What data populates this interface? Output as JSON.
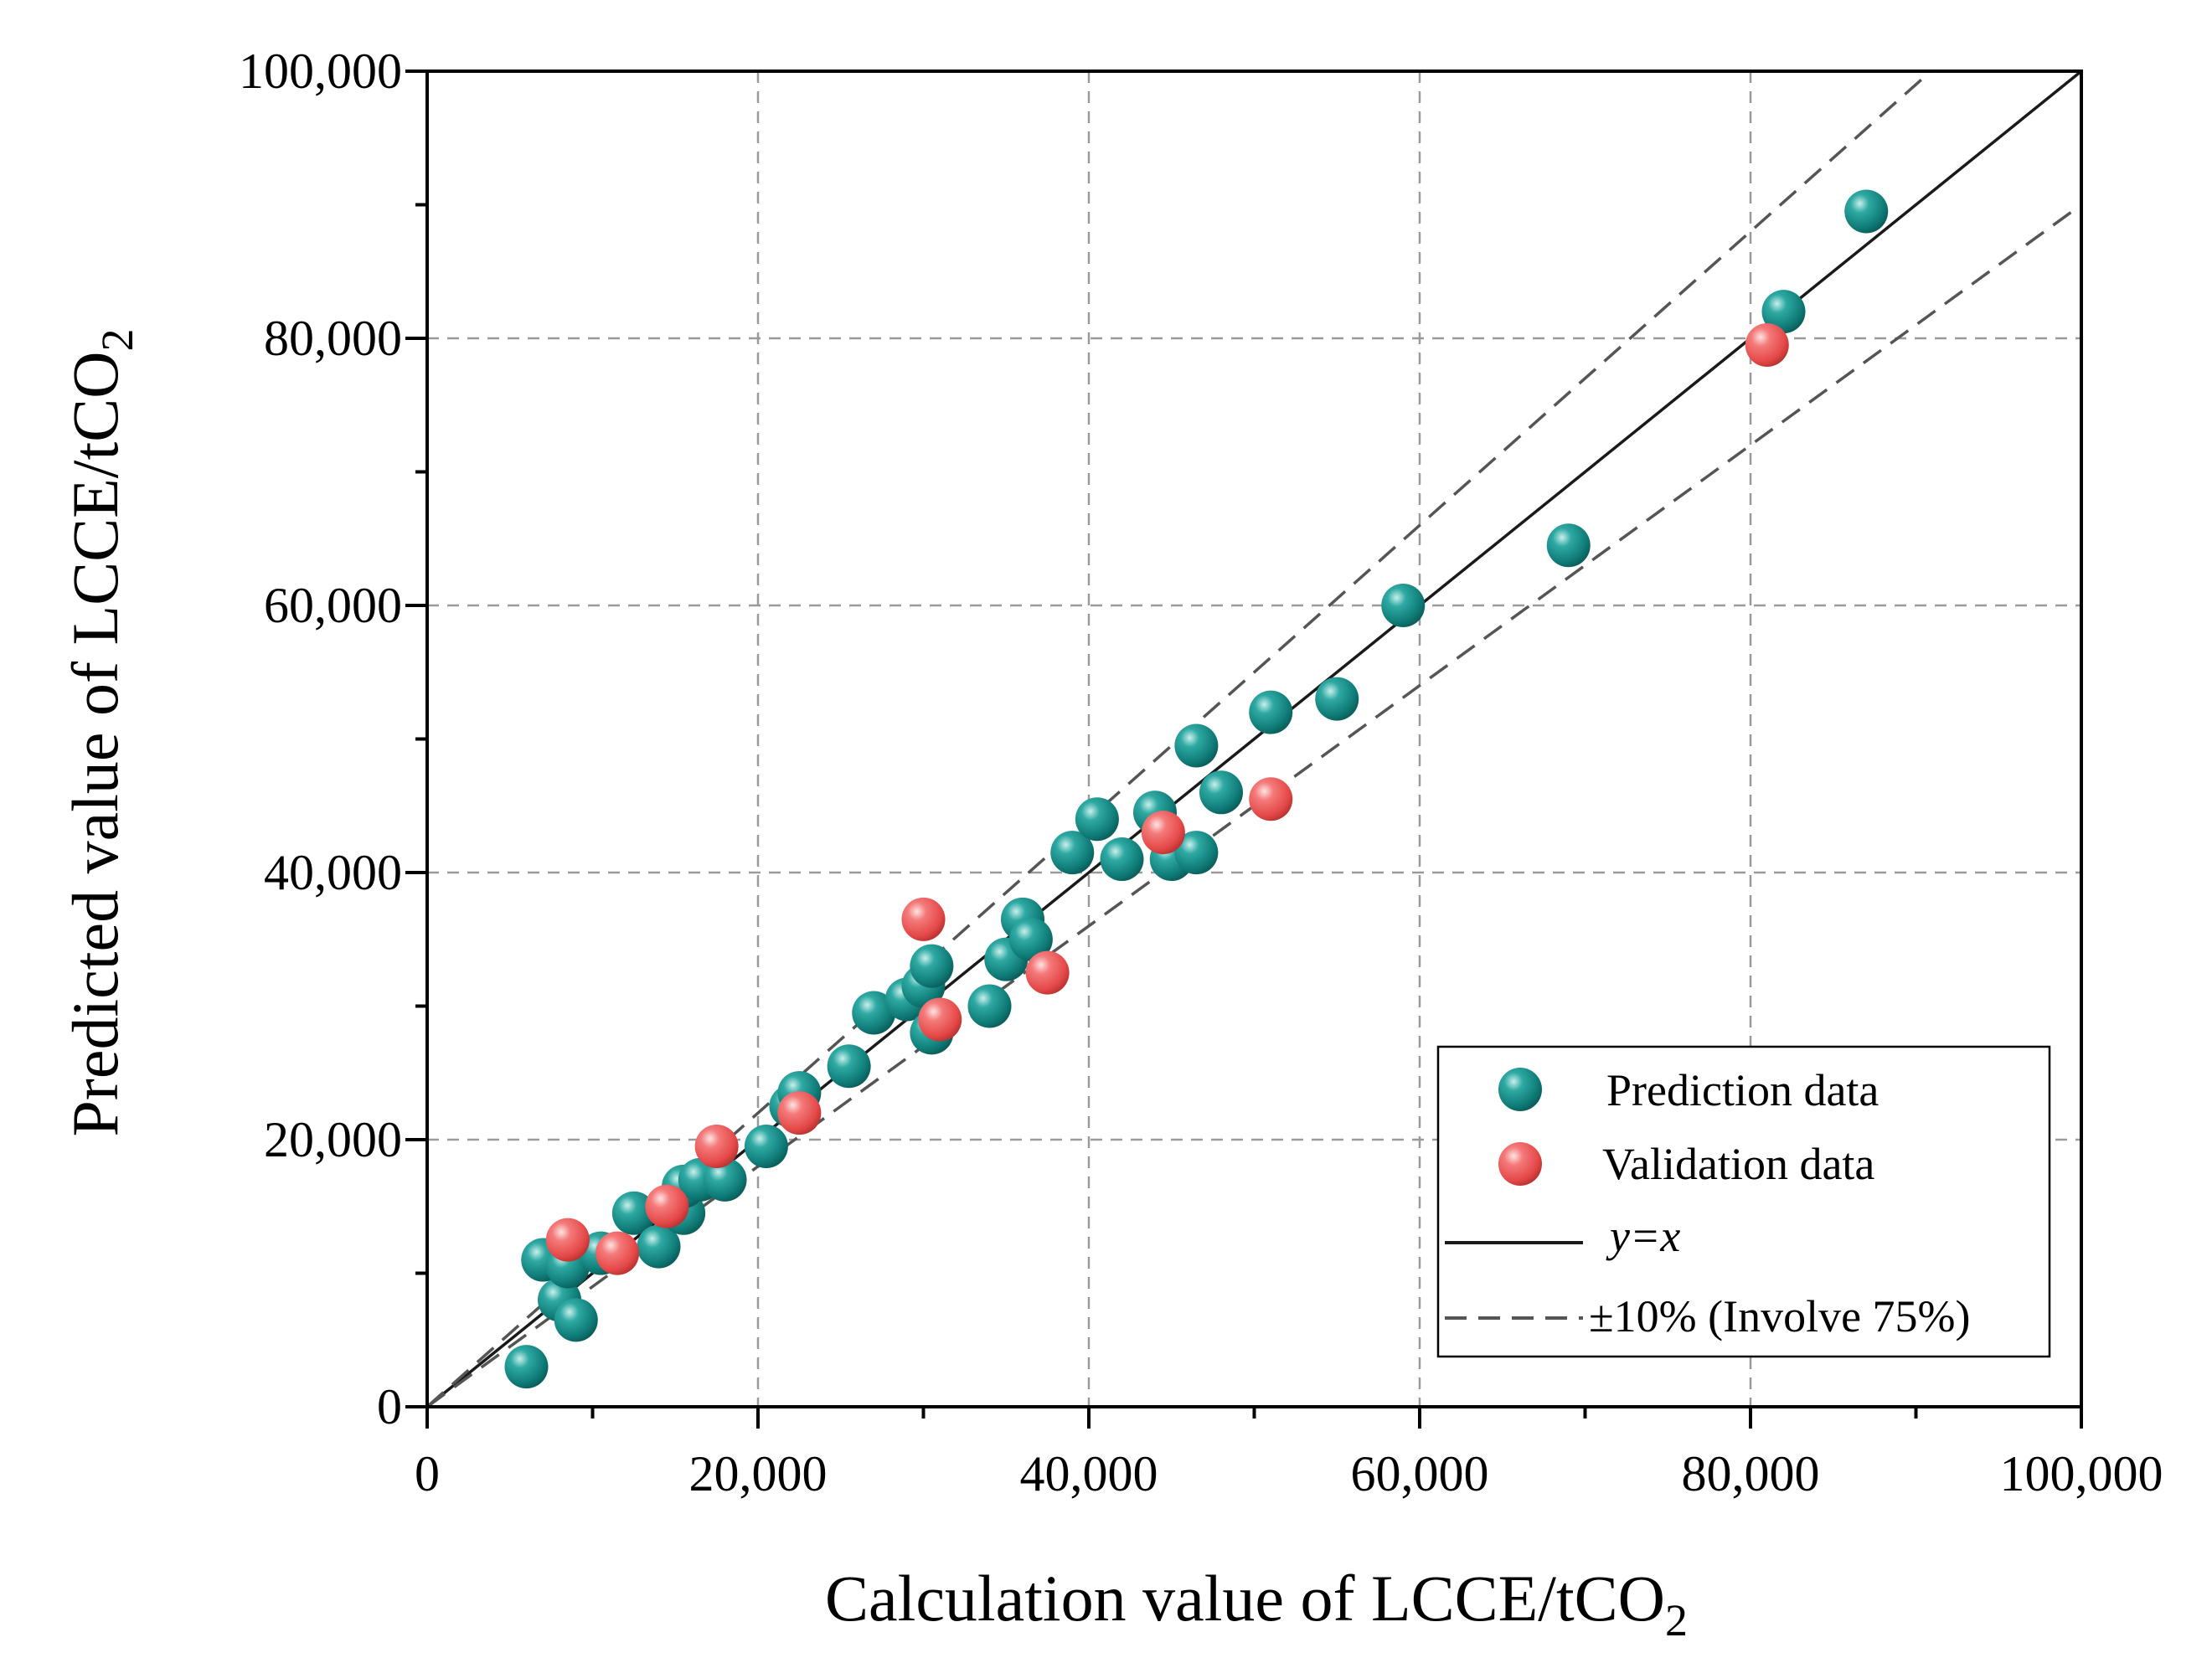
{
  "chart_data": {
    "type": "scatter",
    "title": "",
    "xlabel": {
      "main": "Calculation value of LCCE/tCO",
      "subscript": "2"
    },
    "ylabel": {
      "main": "Predicted value of LCCE/tCO",
      "subscript": "2"
    },
    "xlim": [
      0,
      100000
    ],
    "ylim": [
      0,
      100000
    ],
    "x_ticks": [
      0,
      20000,
      40000,
      60000,
      80000,
      100000
    ],
    "y_ticks": [
      0,
      20000,
      40000,
      60000,
      80000,
      100000
    ],
    "x_tick_labels": [
      "0",
      "20,000",
      "40,000",
      "60,000",
      "80,000",
      "100,000"
    ],
    "y_tick_labels": [
      "0",
      "20,000",
      "40,000",
      "60,000",
      "80,000",
      "100,000"
    ],
    "grid": true,
    "legend_position": "bottom-right",
    "series": [
      {
        "name": "Prediction data",
        "color": "#128a86",
        "points": [
          [
            6000,
            3000
          ],
          [
            7000,
            11000
          ],
          [
            8000,
            8000
          ],
          [
            8500,
            10500
          ],
          [
            9000,
            6500
          ],
          [
            10500,
            11500
          ],
          [
            12500,
            14500
          ],
          [
            14000,
            12000
          ],
          [
            15500,
            14500
          ],
          [
            15500,
            16500
          ],
          [
            16500,
            17000
          ],
          [
            18000,
            17000
          ],
          [
            20500,
            19500
          ],
          [
            22000,
            22500
          ],
          [
            22500,
            23500
          ],
          [
            25500,
            25500
          ],
          [
            27000,
            29500
          ],
          [
            29000,
            30500
          ],
          [
            30000,
            31500
          ],
          [
            30500,
            33000
          ],
          [
            30500,
            28000
          ],
          [
            34000,
            30000
          ],
          [
            35000,
            33500
          ],
          [
            36000,
            36500
          ],
          [
            36500,
            35000
          ],
          [
            39000,
            41500
          ],
          [
            40500,
            44000
          ],
          [
            42000,
            41000
          ],
          [
            44000,
            44500
          ],
          [
            45000,
            41000
          ],
          [
            46500,
            41500
          ],
          [
            46500,
            49500
          ],
          [
            48000,
            46000
          ],
          [
            51000,
            52000
          ],
          [
            55000,
            53000
          ],
          [
            59000,
            60000
          ],
          [
            69000,
            64500
          ],
          [
            82000,
            82000
          ],
          [
            87000,
            89500
          ]
        ]
      },
      {
        "name": "Validation data",
        "color": "#ef5a5a",
        "points": [
          [
            8500,
            12500
          ],
          [
            11500,
            11500
          ],
          [
            14500,
            15000
          ],
          [
            17500,
            19500
          ],
          [
            22500,
            22000
          ],
          [
            30000,
            36500
          ],
          [
            31000,
            29000
          ],
          [
            37500,
            32500
          ],
          [
            44500,
            43000
          ],
          [
            51000,
            45500
          ],
          [
            81000,
            79500
          ]
        ]
      }
    ],
    "lines": [
      {
        "name": "y=x",
        "style": "solid",
        "color": "#1a1a1a",
        "slope": 1.0
      },
      {
        "name": "±10% (Involve 75%)",
        "style": "dashed",
        "color": "#555555",
        "slopes": [
          1.1,
          0.9
        ]
      }
    ],
    "legend": [
      {
        "label": "Prediction data",
        "kind": "marker",
        "color": "#128a86"
      },
      {
        "label": "Validation data",
        "kind": "marker",
        "color": "#ef5a5a"
      },
      {
        "label": "y=x",
        "kind": "line-solid",
        "italic": true
      },
      {
        "label": "±10% (Involve 75%)",
        "kind": "line-dashed"
      }
    ]
  }
}
